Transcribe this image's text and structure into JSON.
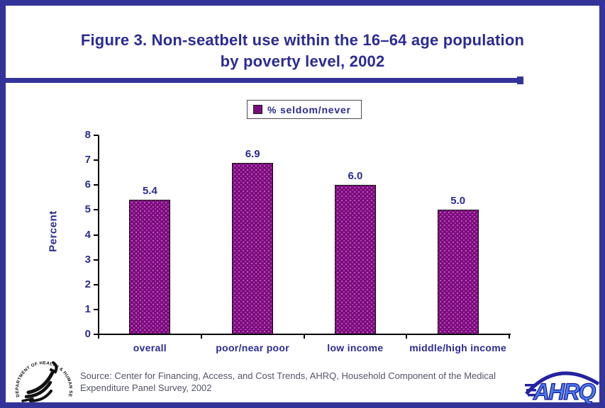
{
  "page": {
    "title_line1": "Figure 3. Non-seatbelt use within the 16–64 age population",
    "title_line2": "by poverty level, 2002",
    "border_color": "#333399",
    "accent_navy": "#2b2b94"
  },
  "legend": {
    "label": "% seldom/never",
    "marker_color": "#7a0d7c"
  },
  "chart_data": {
    "type": "bar",
    "title": "Figure 3. Non-seatbelt use within the 16–64 age population by poverty level, 2002",
    "categories": [
      "overall",
      "poor/near poor",
      "low income",
      "middle/high income"
    ],
    "values": [
      5.4,
      6.9,
      6.0,
      5.0
    ],
    "value_labels": [
      "5.4",
      "6.9",
      "6.0",
      "5.0"
    ],
    "series_label": "% seldom/never",
    "xlabel": "",
    "ylabel": "Percent",
    "ylim": [
      0,
      8
    ],
    "yticks": [
      0,
      1,
      2,
      3,
      4,
      5,
      6,
      7,
      8
    ],
    "grid": false,
    "legend_position": "top-center",
    "bar_color": "#7a0d7c",
    "bar_pattern": "dotted"
  },
  "footer": {
    "source_line1": "Source: Center for Financing, Access, and Cost Trends, AHRQ, Household Component of the Medical",
    "source_line2": "Expenditure Panel Survey, 2002"
  },
  "logos": {
    "hhs_circle_text": "DEPARTMENT OF HEALTH & HUMAN SERVICES • USA",
    "ahrq_text": "AHRQ"
  }
}
